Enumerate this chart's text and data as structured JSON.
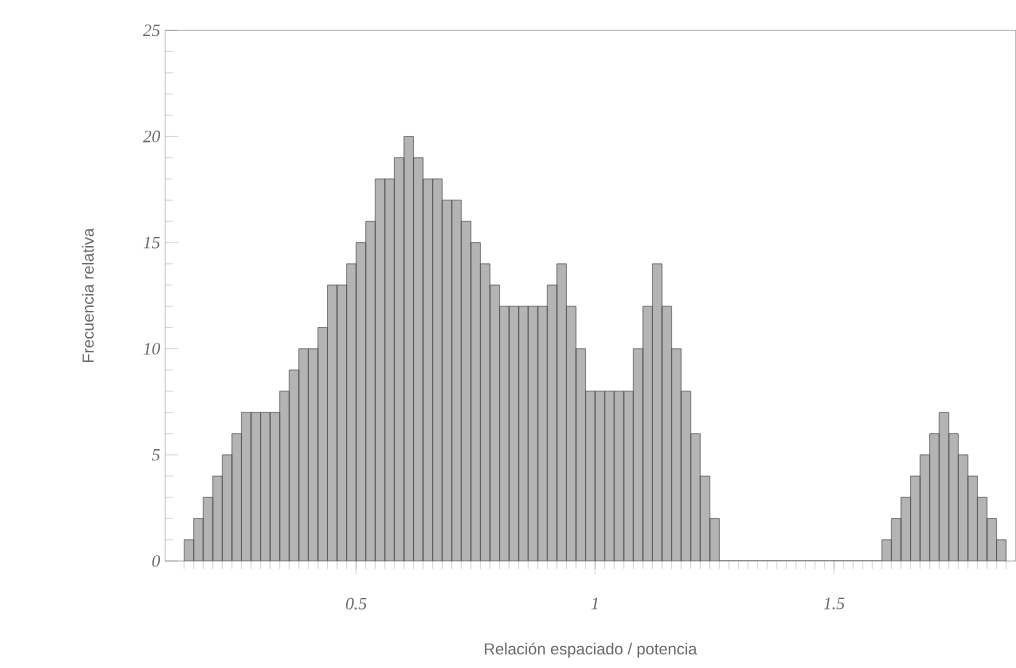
{
  "chart_data": {
    "type": "histogram",
    "xlabel": "Relación espaciado / potencia",
    "ylabel": "Frecuencia relativa",
    "bins": [
      0.14,
      0.16,
      0.18,
      0.2,
      0.22,
      0.24,
      0.26,
      0.28,
      0.3,
      0.32,
      0.34,
      0.36,
      0.38,
      0.4,
      0.42,
      0.44,
      0.46,
      0.48,
      0.5,
      0.52,
      0.54,
      0.56,
      0.58,
      0.6,
      0.62,
      0.64,
      0.66,
      0.68,
      0.7,
      0.72,
      0.74,
      0.76,
      0.78,
      0.8,
      0.82,
      0.84,
      0.86,
      0.88,
      0.9,
      0.92,
      0.94,
      0.96,
      0.98,
      1.0,
      1.02,
      1.04,
      1.06,
      1.08,
      1.1,
      1.12,
      1.14,
      1.16,
      1.18,
      1.2,
      1.22,
      1.24,
      1.26,
      1.28,
      1.3,
      1.32,
      1.34,
      1.36,
      1.38,
      1.4,
      1.42,
      1.44,
      1.46,
      1.48,
      1.5,
      1.52,
      1.54,
      1.56,
      1.58,
      1.6,
      1.62,
      1.64,
      1.66,
      1.68,
      1.7,
      1.72,
      1.74,
      1.76,
      1.78,
      1.8,
      1.82,
      1.84,
      1.86
    ],
    "values": [
      1,
      2,
      3,
      4,
      5,
      6,
      7,
      7,
      7,
      7,
      8,
      9,
      10,
      10,
      11,
      13,
      13,
      14,
      15,
      16,
      18,
      18,
      19,
      20,
      19,
      18,
      18,
      17,
      17,
      16,
      15,
      14,
      13,
      12,
      12,
      12,
      12,
      12,
      13,
      14,
      12,
      10,
      8,
      8,
      8,
      8,
      8,
      10,
      12,
      14,
      12,
      10,
      8,
      6,
      4,
      2,
      0,
      0,
      0,
      0,
      0,
      0,
      0,
      0,
      0,
      0,
      0,
      0,
      0,
      0,
      0,
      0,
      0,
      1,
      2,
      3,
      4,
      5,
      6,
      7,
      6,
      5,
      4,
      3,
      2,
      1
    ],
    "color": "#b4b4b4",
    "xlim": [
      0.1,
      1.88
    ],
    "ylim": [
      0,
      25
    ],
    "xticks": [
      0.5,
      1,
      1.5
    ],
    "yticks": [
      0,
      5,
      10,
      15,
      20,
      25
    ]
  }
}
